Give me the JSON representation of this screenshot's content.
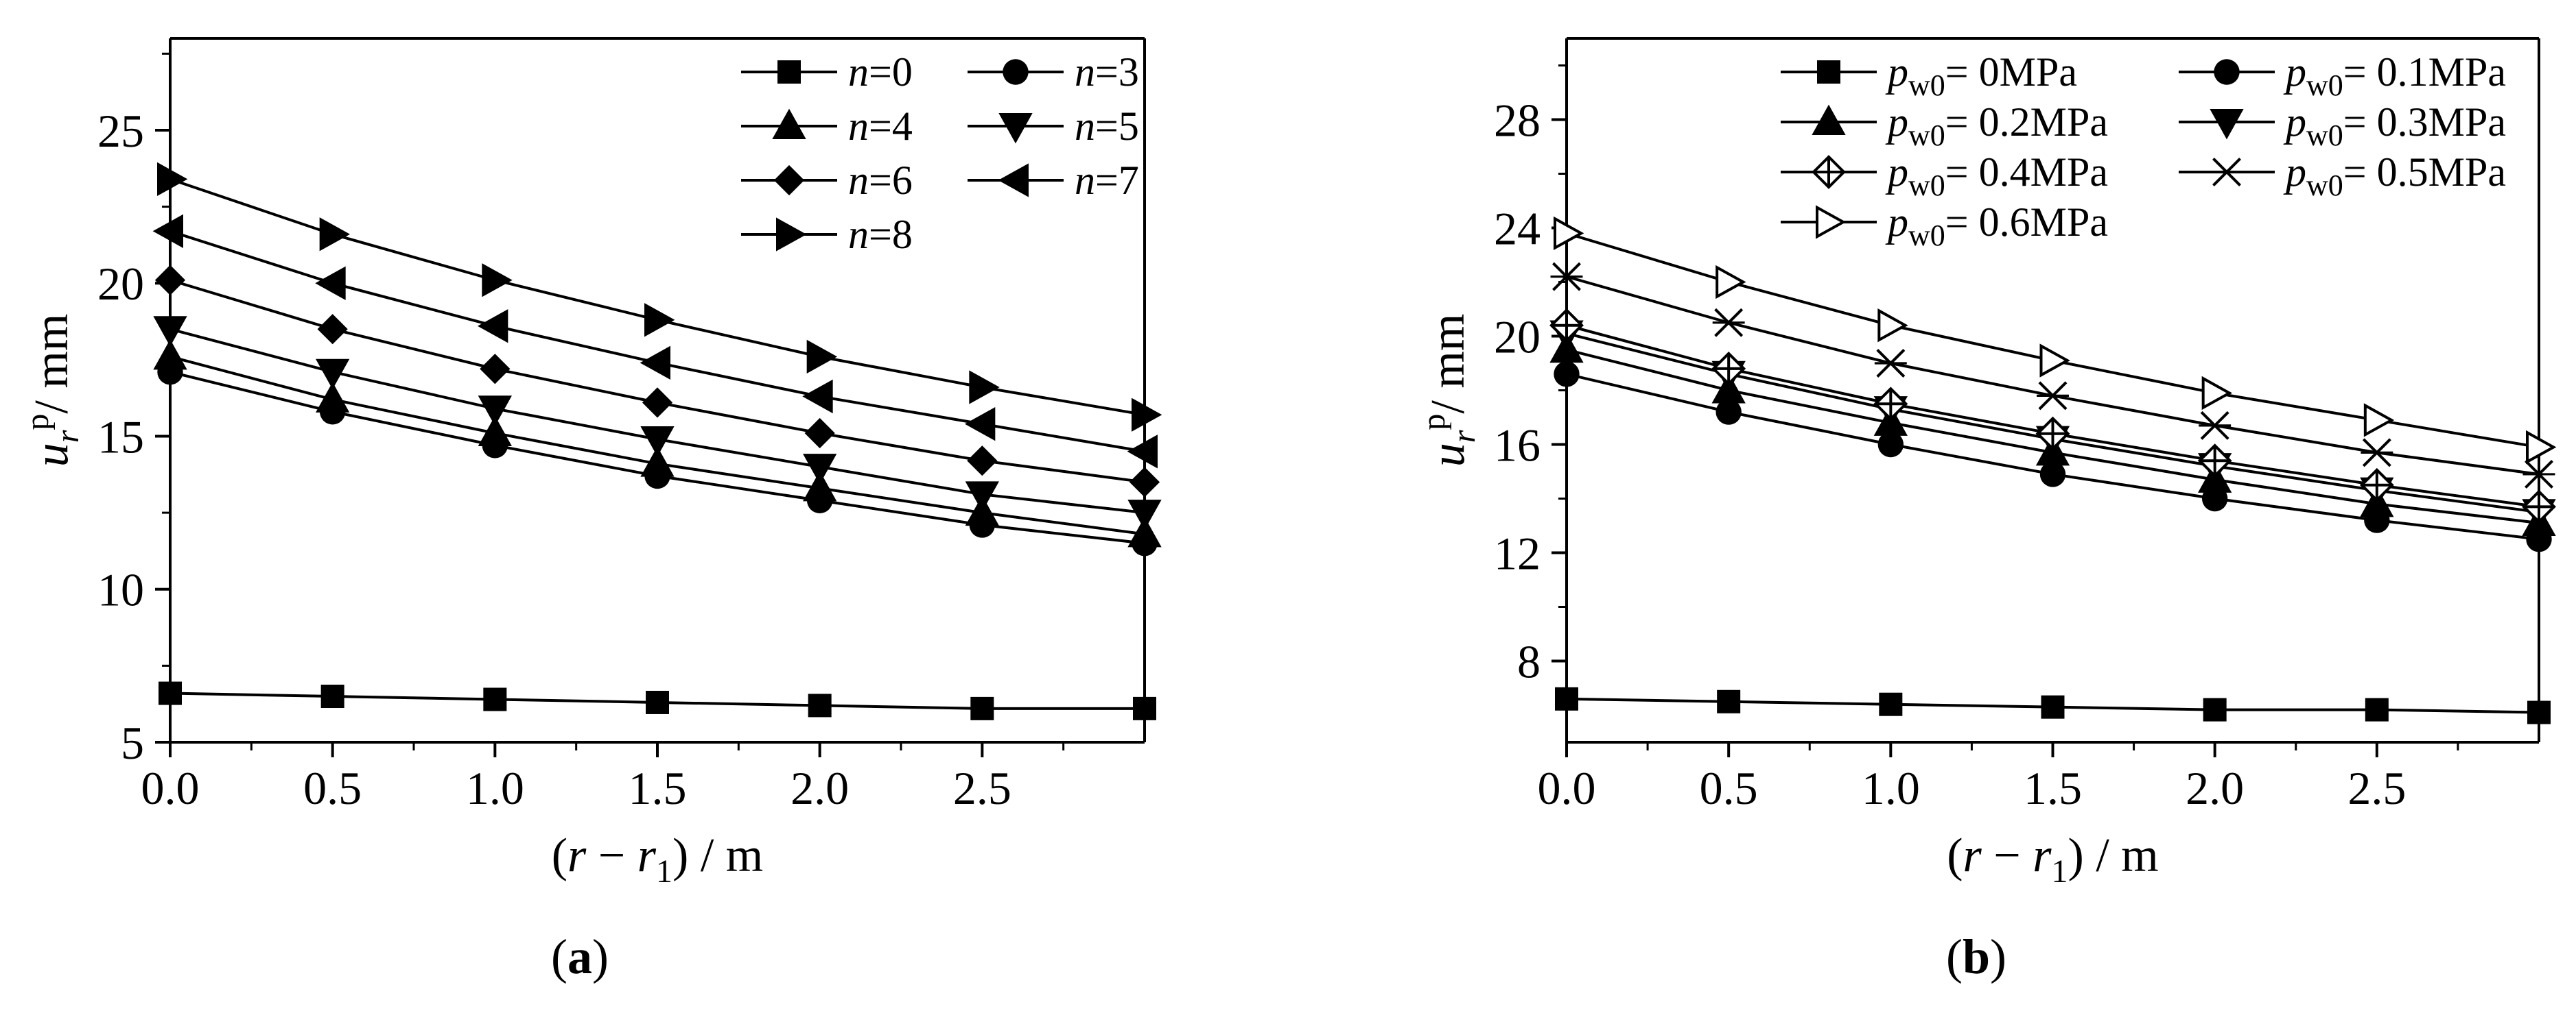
{
  "chart_data": [
    {
      "type": "line",
      "panel_label": "a",
      "xlabel": "(r − r1) / m",
      "xlabel_parts": {
        "open": "(",
        "r": "r",
        "minus": " − ",
        "r1": "r",
        "sub": "1",
        "close": ") / m"
      },
      "ylabel": "ur p/ mm",
      "ylabel_parts": {
        "u": "u",
        "sub": "r",
        "sup": "p",
        "unit": "/ mm"
      },
      "xlim": [
        0,
        3
      ],
      "ylim": [
        5,
        28
      ],
      "xticks": [
        0.0,
        0.5,
        1.0,
        1.5,
        2.0,
        2.5
      ],
      "xtick_labels": [
        "0.0",
        "0.5",
        "1.0",
        "1.5",
        "2.0",
        "2.5"
      ],
      "yticks": [
        5,
        10,
        15,
        20,
        25
      ],
      "ytick_labels": [
        "5",
        "10",
        "15",
        "20",
        "25"
      ],
      "legend_location": "top-right",
      "x": [
        0,
        0.5,
        1.0,
        1.5,
        2.0,
        2.5,
        3.0
      ],
      "series": [
        {
          "name": "n=0",
          "var": "n",
          "val": "=0",
          "marker": "square-filled",
          "values": [
            6.6,
            6.5,
            6.4,
            6.3,
            6.2,
            6.1,
            6.1
          ]
        },
        {
          "name": "n=3",
          "var": "n",
          "val": "=3",
          "marker": "circle-filled",
          "values": [
            17.1,
            15.8,
            14.7,
            13.7,
            12.9,
            12.1,
            11.5
          ]
        },
        {
          "name": "n=4",
          "var": "n",
          "val": "=4",
          "marker": "triangle-up-filled",
          "values": [
            17.6,
            16.2,
            15.1,
            14.1,
            13.3,
            12.5,
            11.8
          ]
        },
        {
          "name": "n=5",
          "var": "n",
          "val": "=5",
          "marker": "triangle-down-filled",
          "values": [
            18.5,
            17.1,
            15.9,
            14.9,
            14.0,
            13.1,
            12.5
          ]
        },
        {
          "name": "n=6",
          "var": "n",
          "val": "=6",
          "marker": "diamond-filled",
          "values": [
            20.1,
            18.5,
            17.2,
            16.1,
            15.1,
            14.2,
            13.5
          ]
        },
        {
          "name": "n=7",
          "var": "n",
          "val": "=7",
          "marker": "triangle-left-filled",
          "values": [
            21.7,
            20.0,
            18.6,
            17.4,
            16.3,
            15.4,
            14.5
          ]
        },
        {
          "name": "n=8",
          "var": "n",
          "val": "=8",
          "marker": "triangle-right-filled",
          "values": [
            23.4,
            21.6,
            20.1,
            18.8,
            17.6,
            16.6,
            15.7
          ]
        }
      ]
    },
    {
      "type": "line",
      "panel_label": "b",
      "xlabel": "(r − r1) / m",
      "xlabel_parts": {
        "open": "(",
        "r": "r",
        "minus": " − ",
        "r1": "r",
        "sub": "1",
        "close": ") / m"
      },
      "ylabel": "ur p/ mm",
      "ylabel_parts": {
        "u": "u",
        "sub": "r",
        "sup": "p",
        "unit": "/ mm"
      },
      "xlim": [
        0,
        3
      ],
      "ylim": [
        5,
        31
      ],
      "xticks": [
        0.0,
        0.5,
        1.0,
        1.5,
        2.0,
        2.5
      ],
      "xtick_labels": [
        "0.0",
        "0.5",
        "1.0",
        "1.5",
        "2.0",
        "2.5"
      ],
      "yticks": [
        8,
        12,
        16,
        20,
        24,
        28
      ],
      "ytick_labels": [
        "8",
        "12",
        "16",
        "20",
        "24",
        "28"
      ],
      "legend_location": "top-right",
      "x": [
        0,
        0.5,
        1.0,
        1.5,
        2.0,
        2.5,
        3.0
      ],
      "series": [
        {
          "name": "pw0= 0MPa",
          "var": "p",
          "sub": "w0",
          "val": "= 0MPa",
          "marker": "square-filled",
          "values": [
            6.6,
            6.5,
            6.4,
            6.3,
            6.2,
            6.2,
            6.1
          ]
        },
        {
          "name": "pw0= 0.1MPa",
          "var": "p",
          "sub": "w0",
          "val": "= 0.1MPa",
          "marker": "circle-filled",
          "values": [
            18.6,
            17.2,
            16.0,
            14.9,
            14.0,
            13.2,
            12.5
          ]
        },
        {
          "name": "pw0= 0.2MPa",
          "var": "p",
          "sub": "w0",
          "val": "= 0.2MPa",
          "marker": "triangle-up-filled",
          "values": [
            19.5,
            18.0,
            16.8,
            15.7,
            14.7,
            13.8,
            13.1
          ]
        },
        {
          "name": "pw0= 0.3MPa",
          "var": "p",
          "sub": "w0",
          "val": "= 0.3MPa",
          "marker": "triangle-down-filled",
          "values": [
            20.1,
            18.6,
            17.3,
            16.2,
            15.2,
            14.3,
            13.5
          ]
        },
        {
          "name": "pw0= 0.4MPa",
          "var": "p",
          "sub": "w0",
          "val": "= 0.4MPa",
          "marker": "diamond-cross-open",
          "values": [
            20.4,
            18.8,
            17.5,
            16.4,
            15.4,
            14.5,
            13.7
          ]
        },
        {
          "name": "pw0= 0.5MPa",
          "var": "p",
          "sub": "w0",
          "val": "= 0.5MPa",
          "marker": "x-cross-open",
          "values": [
            22.2,
            20.5,
            19.0,
            17.8,
            16.7,
            15.7,
            14.9
          ]
        },
        {
          "name": "pw0= 0.6MPa",
          "var": "p",
          "sub": "w0",
          "val": "= 0.6MPa",
          "marker": "triangle-right-open",
          "values": [
            23.8,
            22.0,
            20.4,
            19.1,
            17.9,
            16.9,
            15.9
          ]
        }
      ]
    }
  ]
}
